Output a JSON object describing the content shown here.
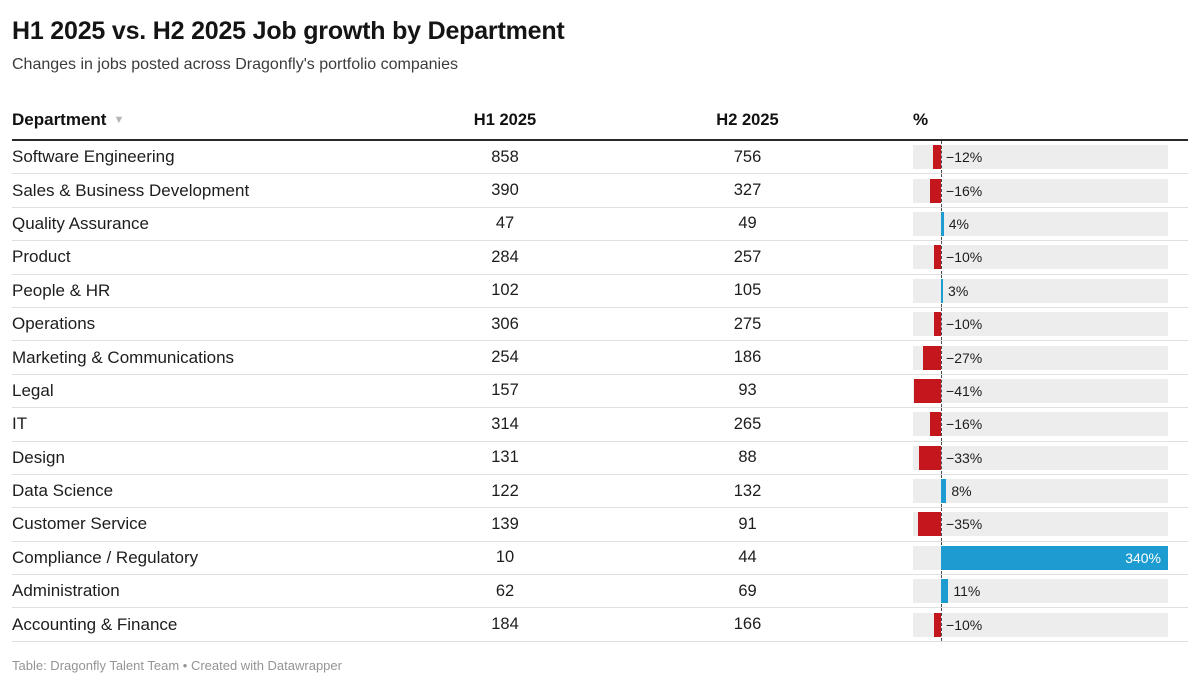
{
  "ui": {
    "sort_icon": "▼"
  },
  "colors": {
    "negative_bar": "#c4161c",
    "positive_bar": "#1c9cd1",
    "bar_track": "#ededed",
    "zero_line": "#4d4d4d",
    "header_rule": "#2a2a2a",
    "row_rule": "#e0e0e0",
    "footer_text": "#949494"
  },
  "footer": {
    "text": "Table: Dragonfly Talent Team • Created with Datawrapper"
  },
  "chart_data": {
    "type": "table",
    "title": "H1 2025 vs. H2 2025 Job growth by Department",
    "subtitle": "Changes in jobs posted across Dragonfly's portfolio companies",
    "columns": [
      "Department",
      "H1 2025",
      "H2 2025",
      "%"
    ],
    "bar_axis_range": [
      -42,
      340
    ],
    "bar_note": "embedded diverging bar column; negative = red, positive = blue",
    "rows": [
      {
        "department": "Software Engineering",
        "h1": 858,
        "h2": 756,
        "pct": -12,
        "pct_label": "−12%"
      },
      {
        "department": "Sales & Business Development",
        "h1": 390,
        "h2": 327,
        "pct": -16,
        "pct_label": "−16%"
      },
      {
        "department": "Quality Assurance",
        "h1": 47,
        "h2": 49,
        "pct": 4,
        "pct_label": "4%"
      },
      {
        "department": "Product",
        "h1": 284,
        "h2": 257,
        "pct": -10,
        "pct_label": "−10%"
      },
      {
        "department": "People & HR",
        "h1": 102,
        "h2": 105,
        "pct": 3,
        "pct_label": "3%"
      },
      {
        "department": "Operations",
        "h1": 306,
        "h2": 275,
        "pct": -10,
        "pct_label": "−10%"
      },
      {
        "department": "Marketing & Communications",
        "h1": 254,
        "h2": 186,
        "pct": -27,
        "pct_label": "−27%"
      },
      {
        "department": "Legal",
        "h1": 157,
        "h2": 93,
        "pct": -41,
        "pct_label": "−41%"
      },
      {
        "department": "IT",
        "h1": 314,
        "h2": 265,
        "pct": -16,
        "pct_label": "−16%"
      },
      {
        "department": "Design",
        "h1": 131,
        "h2": 88,
        "pct": -33,
        "pct_label": "−33%"
      },
      {
        "department": "Data Science",
        "h1": 122,
        "h2": 132,
        "pct": 8,
        "pct_label": "8%"
      },
      {
        "department": "Customer Service",
        "h1": 139,
        "h2": 91,
        "pct": -35,
        "pct_label": "−35%"
      },
      {
        "department": "Compliance / Regulatory",
        "h1": 10,
        "h2": 44,
        "pct": 340,
        "pct_label": "340%",
        "label_inside": true
      },
      {
        "department": "Administration",
        "h1": 62,
        "h2": 69,
        "pct": 11,
        "pct_label": "11%"
      },
      {
        "department": "Accounting & Finance",
        "h1": 184,
        "h2": 166,
        "pct": -10,
        "pct_label": "−10%"
      }
    ]
  }
}
